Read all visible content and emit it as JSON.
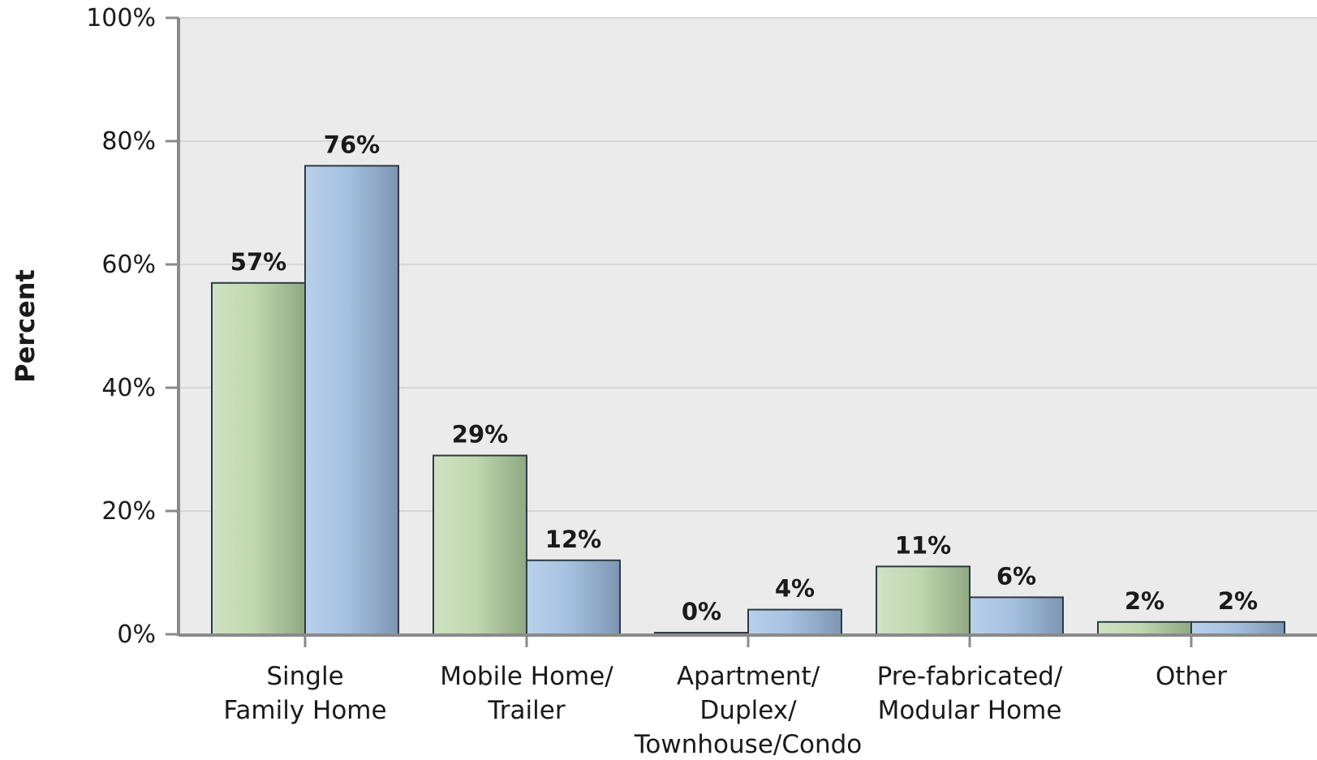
{
  "chart_data": {
    "type": "bar",
    "ylabel": "Percent",
    "xlabel": "",
    "ylim": [
      0,
      100
    ],
    "y_ticks": [
      0,
      20,
      40,
      60,
      80,
      100
    ],
    "y_tick_labels": [
      "0%",
      "20%",
      "40%",
      "60%",
      "80%",
      "100%"
    ],
    "grid": true,
    "categories": [
      [
        "Single",
        "Family Home"
      ],
      [
        "Mobile Home/",
        "Trailer"
      ],
      [
        "Apartment/",
        "Duplex/",
        "Townhouse/Condo"
      ],
      [
        "Pre-fabricated/",
        "Modular Home"
      ],
      [
        "Other"
      ]
    ],
    "series": [
      {
        "values": [
          57,
          29,
          0,
          11,
          2
        ],
        "labels": [
          "57%",
          "29%",
          "0%",
          "11%",
          "2%"
        ],
        "color": "#b9d3a8"
      },
      {
        "values": [
          76,
          12,
          4,
          6,
          2
        ],
        "labels": [
          "76%",
          "12%",
          "4%",
          "6%",
          "2%"
        ],
        "color": "#9fbbdc"
      }
    ],
    "colors": {
      "plot_bg": "#ebebeb",
      "grid": "#d6d6d6",
      "axis": "#8a8a8a",
      "bar_outline": "#2e3a44"
    }
  }
}
